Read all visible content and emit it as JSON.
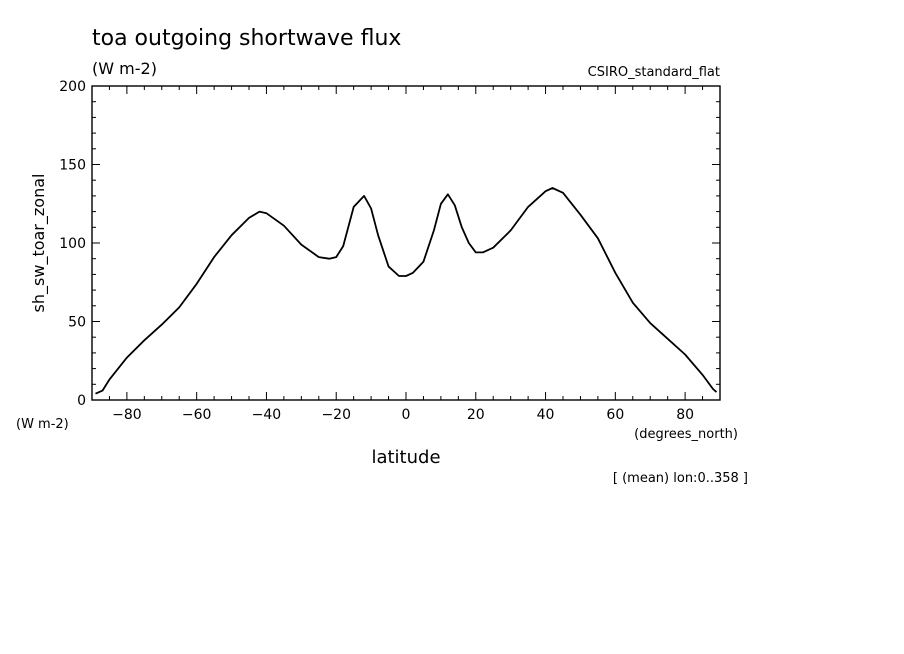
{
  "chart_data": {
    "type": "line",
    "title": "toa outgoing shortwave flux",
    "title_units": "(W m-2)",
    "model_label": "CSIRO_standard_flat",
    "ylabel": "sh_sw_toar_zonal",
    "y_units": "(W m-2)",
    "xlabel": "latitude",
    "x_units": "(degrees_north)",
    "footnote": "[ (mean) lon:0..358 ]",
    "xlim": [
      -90,
      90
    ],
    "ylim": [
      0,
      200
    ],
    "x_ticks": [
      -80,
      -60,
      -40,
      -20,
      0,
      20,
      40,
      60,
      80
    ],
    "y_ticks": [
      0,
      50,
      100,
      150,
      200
    ],
    "grid": false,
    "series": [
      {
        "x": [
          -89,
          -87,
          -85,
          -80,
          -75,
          -70,
          -65,
          -60,
          -55,
          -50,
          -45,
          -42,
          -40,
          -35,
          -30,
          -25,
          -22,
          -20,
          -18,
          -15,
          -12,
          -10,
          -8,
          -5,
          -2,
          0,
          2,
          5,
          8,
          10,
          12,
          14,
          16,
          18,
          20,
          22,
          25,
          30,
          35,
          40,
          42,
          45,
          50,
          55,
          60,
          65,
          70,
          75,
          80,
          85,
          88,
          89
        ],
        "y": [
          4,
          6,
          13,
          27,
          38,
          48,
          59,
          74,
          91,
          105,
          116,
          120,
          119,
          111,
          99,
          91,
          90,
          91,
          98,
          123,
          130,
          122,
          105,
          85,
          79,
          79,
          81,
          88,
          108,
          125,
          131,
          124,
          110,
          100,
          94,
          94,
          97,
          108,
          123,
          133,
          135,
          132,
          118,
          103,
          81,
          62,
          49,
          39,
          29,
          16,
          7,
          5
        ]
      }
    ]
  }
}
